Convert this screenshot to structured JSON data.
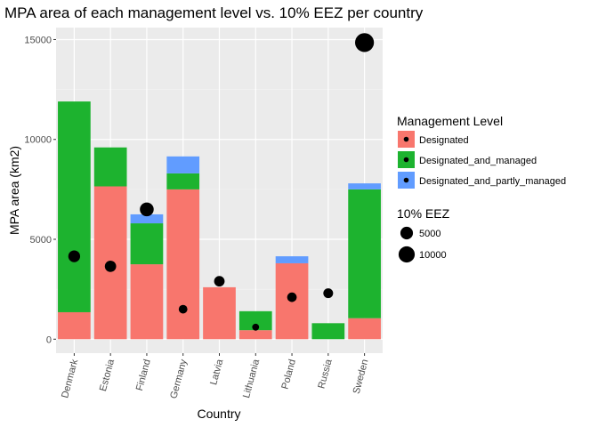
{
  "chart_data": {
    "type": "bar",
    "stacked": true,
    "title": "MPA area of each management level vs. 10% EEZ per country",
    "xlabel": "Country",
    "ylabel": "MPA area (km2)",
    "ylim": [
      -700,
      15600
    ],
    "yticks": [
      0,
      5000,
      10000,
      15000
    ],
    "grid": true,
    "legend_position": "right",
    "categories": [
      "Denmark",
      "Estonia",
      "Finland",
      "Germany",
      "Latvia",
      "Lithuania",
      "Poland",
      "Russia",
      "Sweden"
    ],
    "series": [
      {
        "name": "Designated",
        "color": "#F8766D",
        "values": [
          1350,
          7650,
          3750,
          7500,
          2600,
          450,
          3800,
          0,
          1050
        ]
      },
      {
        "name": "Designated_and_managed",
        "color": "#1DB32F",
        "values": [
          10550,
          1950,
          2050,
          800,
          0,
          950,
          0,
          800,
          6450
        ]
      },
      {
        "name": "Designated_and_partly_managed",
        "color": "#619CFF",
        "values": [
          0,
          0,
          450,
          850,
          0,
          0,
          350,
          0,
          300
        ]
      }
    ],
    "eez_points": {
      "name": "10% EEZ",
      "color": "#000000",
      "values": [
        4150,
        3650,
        6500,
        1500,
        2900,
        600,
        2100,
        2300,
        14850
      ]
    },
    "legend": {
      "fill_title": "Management Level",
      "size_title": "10% EEZ",
      "size_entries": [
        5000,
        10000
      ]
    }
  }
}
